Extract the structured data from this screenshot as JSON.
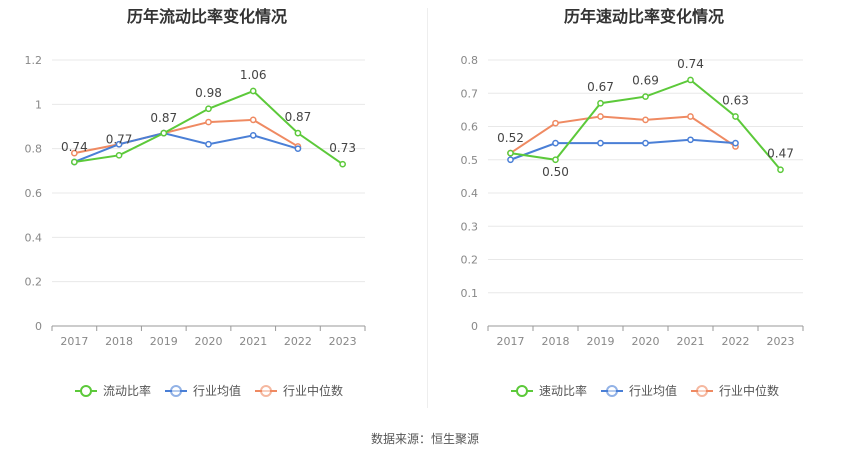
{
  "source": "数据来源：恒生聚源",
  "chart_data": [
    {
      "type": "line",
      "title": "历年流动比率变化情况",
      "categories": [
        "2017",
        "2018",
        "2019",
        "2020",
        "2021",
        "2022",
        "2023"
      ],
      "ylim": [
        0,
        1.2
      ],
      "yticks": [
        "0",
        "0.2",
        "0.4",
        "0.6",
        "0.8",
        "1",
        "1.2"
      ],
      "grid": true,
      "legend": "bottom",
      "series": [
        {
          "name": "流动比率",
          "color": "#5cc93a",
          "values": [
            0.74,
            0.77,
            0.87,
            0.98,
            1.06,
            0.87,
            0.73
          ],
          "labels": [
            "0.74",
            "0.77",
            "0.87",
            "0.98",
            "1.06",
            "0.87",
            "0.73"
          ]
        },
        {
          "name": "行业均值",
          "color": "#4a7fd6",
          "values": [
            0.74,
            0.82,
            0.87,
            0.82,
            0.86,
            0.8,
            null
          ]
        },
        {
          "name": "行业中位数",
          "color": "#ef8a62",
          "values": [
            0.78,
            0.82,
            0.87,
            0.92,
            0.93,
            0.81,
            null
          ]
        }
      ]
    },
    {
      "type": "line",
      "title": "历年速动比率变化情况",
      "categories": [
        "2017",
        "2018",
        "2019",
        "2020",
        "2021",
        "2022",
        "2023"
      ],
      "ylim": [
        0,
        0.8
      ],
      "yticks": [
        "0",
        "0.1",
        "0.2",
        "0.3",
        "0.4",
        "0.5",
        "0.6",
        "0.7",
        "0.8"
      ],
      "grid": true,
      "legend": "bottom",
      "series": [
        {
          "name": "速动比率",
          "color": "#5cc93a",
          "values": [
            0.52,
            0.5,
            0.67,
            0.69,
            0.74,
            0.63,
            0.47
          ],
          "labels": [
            "0.52",
            "0.50",
            "0.67",
            "0.69",
            "0.74",
            "0.63",
            "0.47"
          ]
        },
        {
          "name": "行业均值",
          "color": "#4a7fd6",
          "values": [
            0.5,
            0.55,
            0.55,
            0.55,
            0.56,
            0.55,
            null
          ]
        },
        {
          "name": "行业中位数",
          "color": "#ef8a62",
          "values": [
            0.52,
            0.61,
            0.63,
            0.62,
            0.63,
            0.54,
            null
          ]
        }
      ]
    }
  ]
}
